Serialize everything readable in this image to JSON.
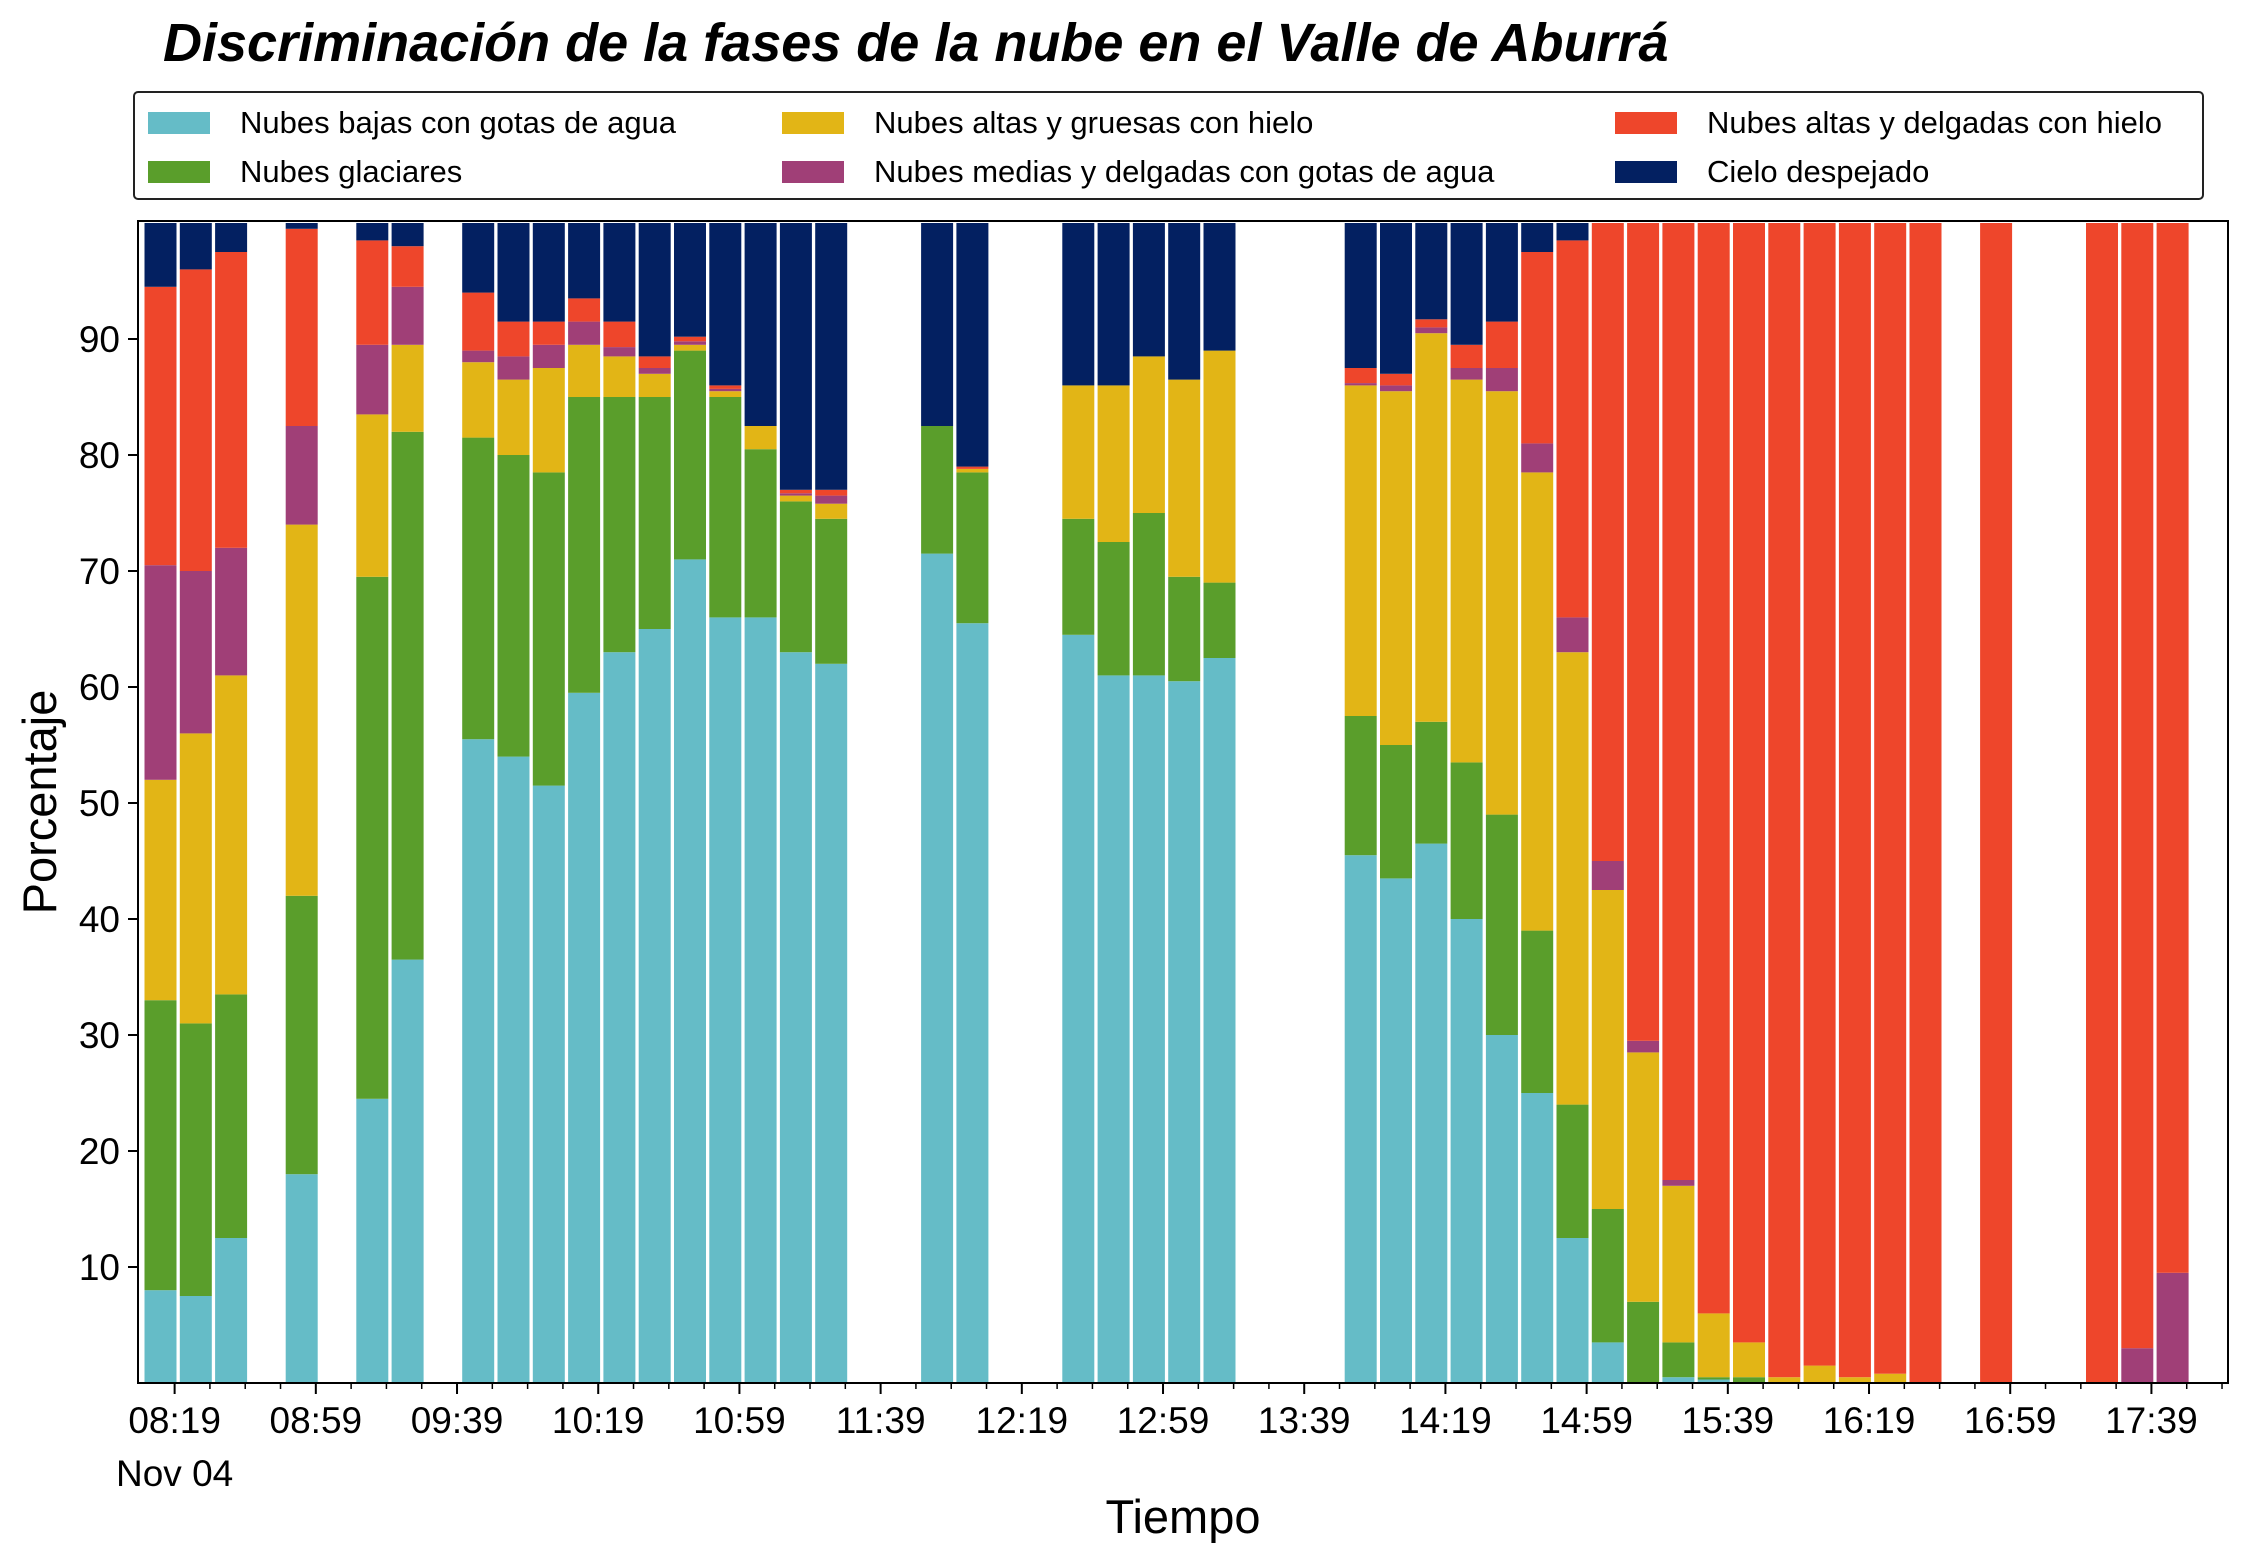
{
  "chart_data": {
    "type": "bar",
    "stacked": true,
    "title": "Discriminación de la fases de la nube en el Valle de Aburrá",
    "xlabel": "Tiempo",
    "ylabel": "Porcentaje",
    "ylim": [
      0,
      100
    ],
    "yticks": [
      10,
      20,
      30,
      40,
      50,
      60,
      70,
      80,
      90
    ],
    "x_tick_labels": [
      "08:19",
      "08:59",
      "09:39",
      "10:19",
      "10:59",
      "11:39",
      "12:19",
      "12:59",
      "13:39",
      "14:19",
      "14:59",
      "15:39",
      "16:19",
      "16:59",
      "17:39"
    ],
    "x_date_label": "Nov 04",
    "x_start": "08:15",
    "x_interval_minutes": 10,
    "legend_position": "top",
    "grid": false,
    "colors": [
      "#65bcc7",
      "#5a9e2b",
      "#e2b516",
      "#a03f77",
      "#ee462b",
      "#032061"
    ],
    "series": [
      {
        "name": "Nubes bajas con gotas de agua"
      },
      {
        "name": "Nubes glaciares"
      },
      {
        "name": "Nubes altas y gruesas con hielo"
      },
      {
        "name": "Nubes medias y delgadas con gotas de agua"
      },
      {
        "name": "Nubes altas y delgadas con hielo"
      },
      {
        "name": "Cielo despejado"
      }
    ],
    "bars": [
      {
        "time": "08:15",
        "values": [
          8,
          25,
          19,
          18.5,
          24,
          5.5
        ]
      },
      {
        "time": "08:25",
        "values": [
          7.5,
          23.5,
          25,
          14,
          26,
          4
        ]
      },
      {
        "time": "08:35",
        "values": [
          12.5,
          21,
          27.5,
          11,
          25.5,
          2.5
        ]
      },
      {
        "time": "08:55",
        "values": [
          18,
          24,
          32,
          8.5,
          17,
          0.5
        ]
      },
      {
        "time": "09:15",
        "values": [
          24.5,
          45,
          14,
          6,
          9,
          1.5
        ]
      },
      {
        "time": "09:25",
        "values": [
          36.5,
          45.5,
          7.5,
          5,
          3.5,
          2
        ]
      },
      {
        "time": "09:45",
        "values": [
          55.5,
          26,
          6.5,
          1,
          5,
          6
        ]
      },
      {
        "time": "09:55",
        "values": [
          54,
          26,
          6.5,
          2,
          3,
          8.5
        ]
      },
      {
        "time": "10:05",
        "values": [
          51.5,
          27,
          9,
          2,
          2,
          8.5
        ]
      },
      {
        "time": "10:15",
        "values": [
          59.5,
          25.5,
          4.5,
          2,
          2,
          6.5
        ]
      },
      {
        "time": "10:25",
        "values": [
          63,
          22,
          3.5,
          0.8,
          2.2,
          8.5
        ]
      },
      {
        "time": "10:35",
        "values": [
          65,
          20,
          2,
          0.5,
          1,
          11.5
        ]
      },
      {
        "time": "10:45",
        "values": [
          71,
          18,
          0.5,
          0.3,
          0.4,
          9.8
        ]
      },
      {
        "time": "10:55",
        "values": [
          66,
          19,
          0.5,
          0.2,
          0.3,
          14
        ]
      },
      {
        "time": "11:05",
        "values": [
          66,
          14.5,
          2,
          0,
          0,
          17.5
        ]
      },
      {
        "time": "11:15",
        "values": [
          63,
          13,
          0.5,
          0.2,
          0.3,
          23
        ]
      },
      {
        "time": "11:25",
        "values": [
          62,
          12.5,
          1.3,
          0.7,
          0.5,
          23
        ]
      },
      {
        "time": "11:55",
        "values": [
          71.5,
          11,
          0,
          0,
          0,
          17.5
        ]
      },
      {
        "time": "12:05",
        "values": [
          65.5,
          13,
          0.3,
          0,
          0.2,
          21
        ]
      },
      {
        "time": "12:35",
        "values": [
          64.5,
          10,
          11.5,
          0,
          0,
          14
        ]
      },
      {
        "time": "12:45",
        "values": [
          61,
          11.5,
          13.5,
          0,
          0,
          14
        ]
      },
      {
        "time": "12:55",
        "values": [
          61,
          14,
          13.5,
          0,
          0,
          11.5
        ]
      },
      {
        "time": "13:05",
        "values": [
          60.5,
          9,
          17,
          0,
          0,
          13.5
        ]
      },
      {
        "time": "13:15",
        "values": [
          62.5,
          6.5,
          20,
          0,
          0,
          11
        ]
      },
      {
        "time": "13:55",
        "values": [
          45.5,
          12,
          28.5,
          0.2,
          1.3,
          12.5
        ]
      },
      {
        "time": "14:05",
        "values": [
          43.5,
          11.5,
          30.5,
          0.5,
          1,
          13
        ]
      },
      {
        "time": "14:15",
        "values": [
          46.5,
          10.5,
          33.5,
          0.5,
          0.7,
          8.3
        ]
      },
      {
        "time": "14:25",
        "values": [
          40,
          13.5,
          33,
          1,
          2,
          10.5
        ]
      },
      {
        "time": "14:35",
        "values": [
          30,
          19,
          36.5,
          2,
          4,
          8.5
        ]
      },
      {
        "time": "14:45",
        "values": [
          25,
          14,
          39.5,
          2.5,
          16.5,
          2.5
        ]
      },
      {
        "time": "14:55",
        "values": [
          12.5,
          11.5,
          39,
          3,
          32.5,
          1.5
        ]
      },
      {
        "time": "15:05",
        "values": [
          3.5,
          11.5,
          27.5,
          2.5,
          55,
          0
        ]
      },
      {
        "time": "15:15",
        "values": [
          0,
          7,
          21.5,
          1,
          70.5,
          0
        ]
      },
      {
        "time": "15:25",
        "values": [
          0.5,
          3,
          13.5,
          0.5,
          82.5,
          0
        ]
      },
      {
        "time": "15:35",
        "values": [
          0.3,
          0.2,
          5.5,
          0,
          94,
          0
        ]
      },
      {
        "time": "15:45",
        "values": [
          0,
          0.5,
          3,
          0,
          96.5,
          0
        ]
      },
      {
        "time": "15:55",
        "values": [
          0,
          0,
          0.5,
          0,
          99.5,
          0
        ]
      },
      {
        "time": "16:05",
        "values": [
          0,
          0,
          1.5,
          0,
          98.5,
          0
        ]
      },
      {
        "time": "16:15",
        "values": [
          0,
          0,
          0.5,
          0,
          99.5,
          0
        ]
      },
      {
        "time": "16:25",
        "values": [
          0,
          0,
          0.8,
          0,
          99.2,
          0
        ]
      },
      {
        "time": "16:35",
        "values": [
          0,
          0,
          0,
          0,
          100,
          0
        ]
      },
      {
        "time": "16:55",
        "values": [
          0,
          0,
          0,
          0,
          100,
          0
        ]
      },
      {
        "time": "17:25",
        "values": [
          0,
          0,
          0,
          0,
          100,
          0
        ]
      },
      {
        "time": "17:35",
        "values": [
          0,
          0,
          0,
          3,
          97,
          0
        ]
      },
      {
        "time": "17:45",
        "values": [
          0,
          0,
          0,
          9.5,
          90.5,
          0
        ]
      }
    ]
  }
}
